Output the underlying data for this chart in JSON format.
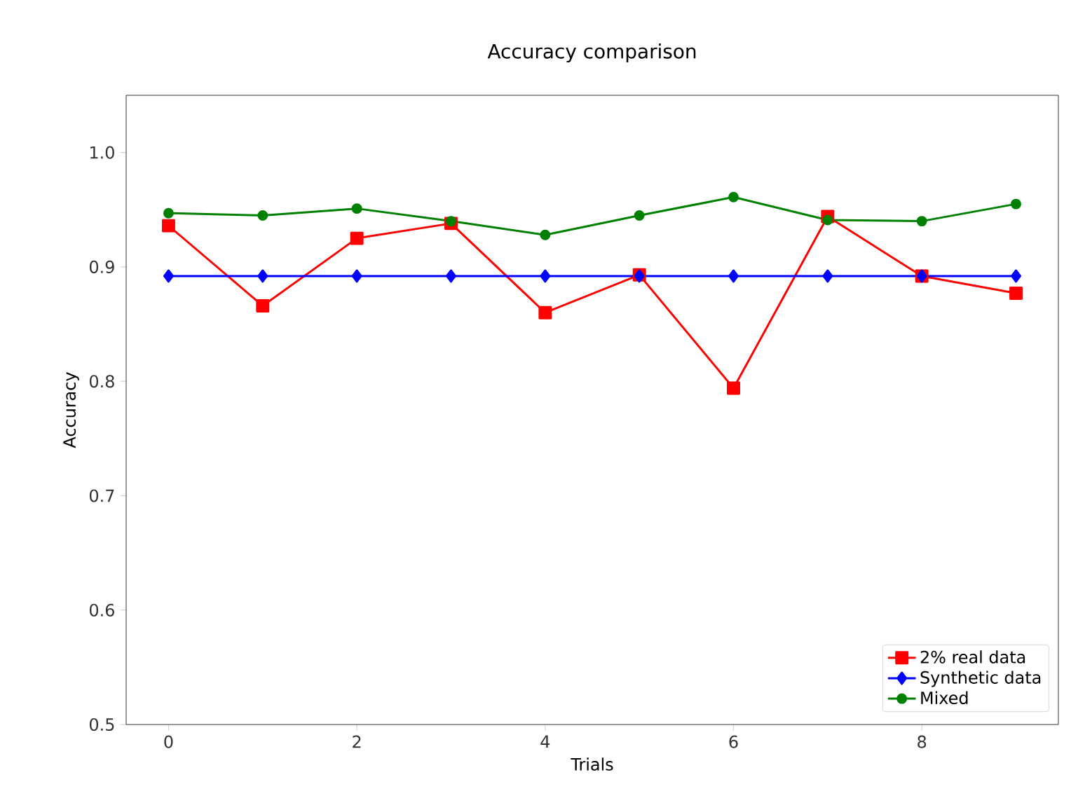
{
  "chart_data": {
    "type": "line",
    "title": "Accuracy comparison",
    "xlabel": "Trials",
    "ylabel": "Accuracy",
    "x": [
      0,
      1,
      2,
      3,
      4,
      5,
      6,
      7,
      8,
      9
    ],
    "series": [
      {
        "name": "2% real data",
        "color": "#ff0000",
        "marker": "square",
        "values": [
          0.936,
          0.866,
          0.925,
          0.938,
          0.86,
          0.893,
          0.794,
          0.944,
          0.892,
          0.877
        ]
      },
      {
        "name": "Synthetic data",
        "color": "#0000ff",
        "marker": "diamond",
        "values": [
          0.892,
          0.892,
          0.892,
          0.892,
          0.892,
          0.892,
          0.892,
          0.892,
          0.892,
          0.892
        ]
      },
      {
        "name": "Mixed",
        "color": "#008000",
        "marker": "circle",
        "values": [
          0.947,
          0.945,
          0.951,
          0.94,
          0.928,
          0.945,
          0.961,
          0.941,
          0.94,
          0.955
        ]
      }
    ],
    "xlim": [
      -0.45,
      9.45
    ],
    "ylim": [
      0.5,
      1.05
    ],
    "xticks": [
      0,
      2,
      4,
      6,
      8
    ],
    "yticks": [
      0.5,
      0.6,
      0.7,
      0.8,
      0.9,
      {
        "value": 1.0,
        "label": "1.0"
      }
    ],
    "legend": "bottom right",
    "grid": false,
    "line_style": "solid"
  }
}
